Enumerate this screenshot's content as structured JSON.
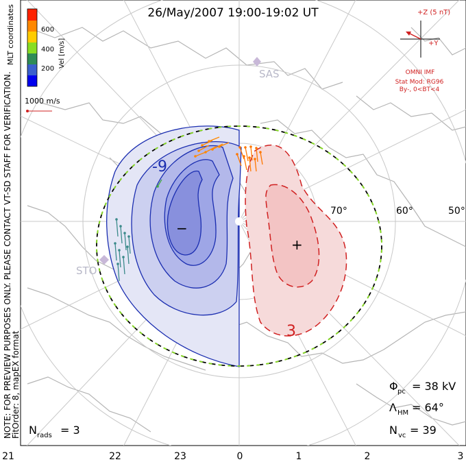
{
  "title": "26/May/2007 19:00-19:02 UT",
  "velocity_scale": {
    "label": "Vel [m/s]",
    "ticks": [
      "600",
      "400",
      "200"
    ],
    "colors": [
      "#ff2200",
      "#ff8800",
      "#ffcc00",
      "#88dd22",
      "#2e8b57",
      "#3a5fcd",
      "#0000ee"
    ]
  },
  "coord_label": "MLT coordinates",
  "vector_scale": "1000 m/s",
  "side_note_1": "NOTE: FOR PREVIEW PURPOSES ONLY. PLEASE CONTACT VT-SD STAFF FOR VERIFICATION.",
  "side_note_2": "FitOrder: 8, mapEX format",
  "imf": {
    "z_label": "+Z (5 nT)",
    "y_label": "+Y",
    "source": "OMNI IMF",
    "stat_mod": "Stat Mod: RG96",
    "condition": "By-, 0<BT<4"
  },
  "stations": [
    "SAS",
    "STO"
  ],
  "lat_labels": [
    "70°",
    "60°",
    "50°"
  ],
  "contour_labels": [
    "-9",
    "3"
  ],
  "min_marker": "−",
  "max_marker": "+",
  "stats": {
    "phi_pc_label": "Φ",
    "phi_pc_sub": "pc",
    "phi_pc_value": "= 38 kV",
    "lambda_label": "Λ",
    "lambda_sub": "HM",
    "lambda_value": "= 64°",
    "nvc_label": "N",
    "nvc_sub": "vc",
    "nvc_value": "= 39",
    "nrads_label": "N",
    "nrads_sub": "rads",
    "nrads_value": "= 3"
  },
  "mlt_labels": [
    "21",
    "22",
    "23",
    "0",
    "1",
    "2",
    "3"
  ],
  "colors": {
    "neg_fill": "#9ea6e6",
    "neg_line": "#1a2db0",
    "pos_fill": "#f3c4c4",
    "pos_line": "#d02020",
    "grid": "#c8c8c8",
    "coast": "#b4b4b4"
  }
}
